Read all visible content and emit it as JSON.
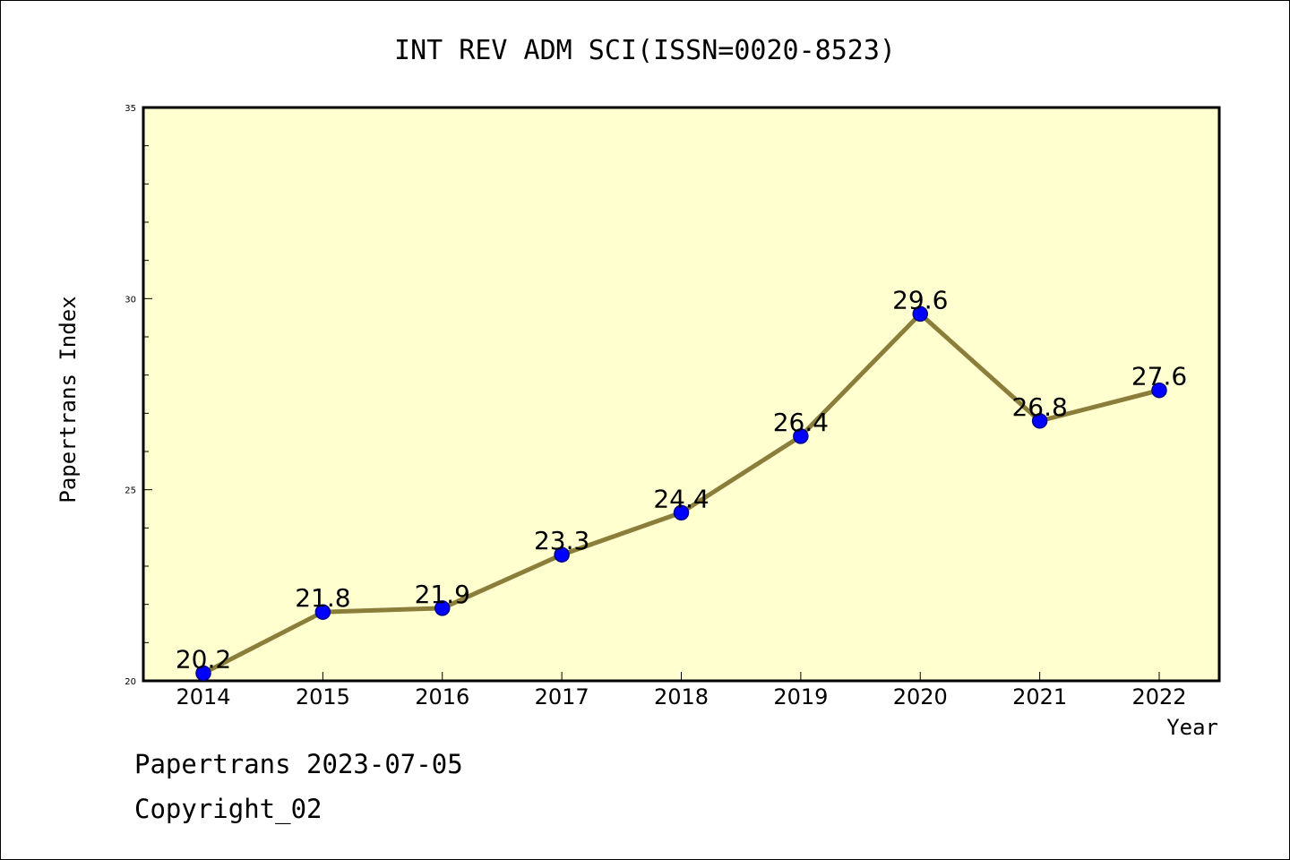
{
  "chart_data": {
    "type": "line",
    "title": "INT REV ADM SCI(ISSN=0020-8523)",
    "xlabel": "Year",
    "ylabel": "Papertrans Index",
    "categories": [
      "2014",
      "2015",
      "2016",
      "2017",
      "2018",
      "2019",
      "2020",
      "2021",
      "2022"
    ],
    "values": [
      20.2,
      21.8,
      21.9,
      23.3,
      24.4,
      26.4,
      29.6,
      26.8,
      27.6
    ],
    "data_labels": [
      "20.2",
      "21.8",
      "21.9",
      "23.3",
      "24.4",
      "26.4",
      "29.6",
      "26.8",
      "27.6"
    ],
    "ylim": [
      20,
      35
    ],
    "y_ticks": [
      "20",
      "25",
      "30",
      "35"
    ],
    "y_minor_step": 1,
    "grid": false,
    "colors": {
      "plot_background": "#ffffd0",
      "line": "#8b7d3a",
      "marker": "#0000ff"
    }
  },
  "footer": {
    "line1": "Papertrans 2023-07-05",
    "line2": "Copyright_02"
  }
}
